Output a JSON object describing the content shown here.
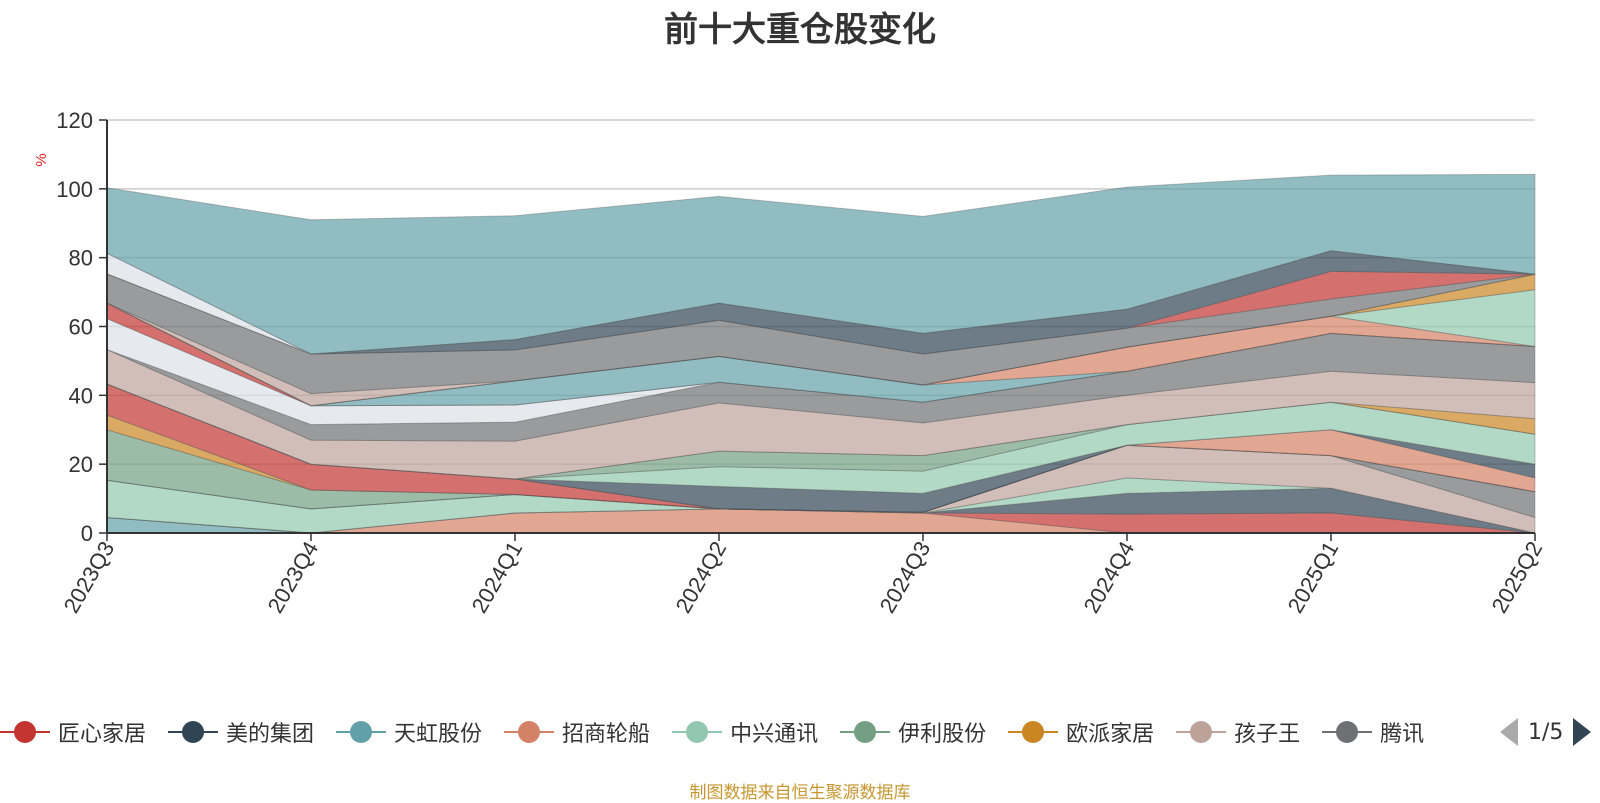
{
  "title": "前十大重仓股变化",
  "footer": "制图数据来自恒生聚源数据库",
  "legend": {
    "items": [
      {
        "name": "匠心家居",
        "color": "#c23531"
      },
      {
        "name": "美的集团",
        "color": "#2f4554"
      },
      {
        "name": "天虹股份",
        "color": "#61a0a8"
      },
      {
        "name": "招商轮船",
        "color": "#d48265"
      },
      {
        "name": "中兴通讯",
        "color": "#91c7ae"
      },
      {
        "name": "伊利股份",
        "color": "#749f83"
      },
      {
        "name": "欧派家居",
        "color": "#ca8622"
      },
      {
        "name": "孩子王",
        "color": "#bda29a"
      },
      {
        "name": "腾讯",
        "color": "#6e7074"
      }
    ],
    "page": "1/5"
  },
  "chart_data": {
    "type": "area",
    "stacked": true,
    "title": "前十大重仓股变化",
    "ylabel": "%",
    "ylim": [
      0,
      120
    ],
    "yticks": [
      0,
      20,
      40,
      60,
      80,
      100,
      120
    ],
    "grid": true,
    "categories": [
      "2023Q3",
      "2023Q4",
      "2024Q1",
      "2024Q2",
      "2024Q3",
      "2024Q4",
      "2025Q1",
      "2025Q2"
    ],
    "series": [
      {
        "color": "#61a0a8",
        "values": [
          4.5,
          0,
          0,
          0,
          0,
          0,
          0,
          0
        ]
      },
      {
        "color": "#d48265",
        "values": [
          0,
          0,
          5.8,
          7.0,
          5.8,
          0,
          0,
          0
        ]
      },
      {
        "color": "#c23531",
        "values": [
          0,
          0,
          0,
          0,
          0,
          5.5,
          5.8,
          0
        ]
      },
      {
        "color": "#2f4554",
        "values": [
          0,
          0,
          0,
          0,
          0,
          6.0,
          7.2,
          0
        ]
      },
      {
        "color": "#91c7ae",
        "values": [
          10.8,
          7.0,
          5.4,
          0,
          0,
          4.5,
          0,
          0
        ]
      },
      {
        "color": "#bda29a",
        "values": [
          0,
          0,
          0,
          0,
          0.2,
          9.5,
          9.5,
          4.5
        ]
      },
      {
        "color": "#6e7074",
        "values": [
          0,
          0,
          0,
          0,
          0,
          0,
          0,
          7.5
        ]
      },
      {
        "color": "#749f83",
        "values": [
          14.7,
          5.5,
          0,
          0,
          0,
          0,
          0,
          0
        ]
      },
      {
        "color": "#ca8622",
        "values": [
          4.3,
          0,
          0,
          0,
          0,
          0,
          0,
          0
        ]
      },
      {
        "color": "#c23531",
        "values": [
          9.0,
          7.5,
          4.5,
          0,
          0,
          0,
          0,
          0
        ]
      },
      {
        "color": "#d48265",
        "values": [
          0,
          0,
          0,
          0,
          0,
          0,
          7.5,
          4.0
        ]
      },
      {
        "color": "#2f4554",
        "values": [
          0,
          0,
          0,
          6.5,
          5.5,
          0,
          0,
          4.0
        ]
      },
      {
        "color": "#91c7ae",
        "values": [
          0,
          0,
          0,
          5.8,
          6.5,
          6.0,
          8.0,
          8.7
        ]
      },
      {
        "color": "#749f83",
        "values": [
          0,
          0,
          0,
          4.5,
          4.5,
          0,
          0,
          0
        ]
      },
      {
        "color": "#ca8622",
        "values": [
          0,
          0,
          0,
          0,
          0,
          0,
          0,
          4.5
        ]
      },
      {
        "color": "#bda29a",
        "values": [
          10.0,
          7.0,
          11.0,
          14.0,
          9.5,
          8.5,
          9.0,
          10.5
        ]
      },
      {
        "color": "#6e7074",
        "values": [
          0,
          4.5,
          5.5,
          6.0,
          6.0,
          7.0,
          11.0,
          10.5
        ]
      },
      {
        "color": "#dcdfe6",
        "values": [
          9.0,
          5.5,
          5.0,
          0,
          0,
          0,
          0,
          0
        ]
      },
      {
        "color": "#c23531",
        "values": [
          4.5,
          0,
          0,
          0,
          0,
          0,
          0,
          0
        ]
      },
      {
        "color": "#61a0a8",
        "values": [
          0,
          0,
          7.0,
          7.5,
          5.0,
          0,
          0,
          0
        ]
      },
      {
        "color": "#d48265",
        "values": [
          0,
          0,
          0,
          0,
          0,
          7.0,
          5.0,
          0
        ]
      },
      {
        "color": "#91c7ae",
        "values": [
          0,
          0,
          0,
          0,
          0,
          0,
          0,
          16.5
        ]
      },
      {
        "color": "#ca8622",
        "values": [
          0,
          0,
          0,
          0,
          0,
          0,
          0,
          4.5
        ]
      },
      {
        "color": "#bda29a",
        "values": [
          0,
          3.5,
          0,
          0,
          0,
          0,
          0,
          0
        ]
      },
      {
        "color": "#6e7074",
        "values": [
          8.5,
          11.5,
          9.0,
          10.5,
          9.0,
          5.5,
          5.0,
          0
        ]
      },
      {
        "color": "#c23531",
        "values": [
          0,
          0,
          0,
          0,
          0,
          0,
          8.0,
          0
        ]
      },
      {
        "color": "#2f4554",
        "values": [
          0,
          0,
          3.0,
          5.0,
          6.0,
          5.5,
          6.0,
          0
        ]
      },
      {
        "color": "#dcdfe6",
        "values": [
          6.0,
          0,
          0,
          0,
          0,
          0,
          0,
          0
        ]
      },
      {
        "color": "#61a0a8",
        "values": [
          19.0,
          39.0,
          36.0,
          31.0,
          34.0,
          35.5,
          22.0,
          29.0
        ]
      }
    ]
  }
}
